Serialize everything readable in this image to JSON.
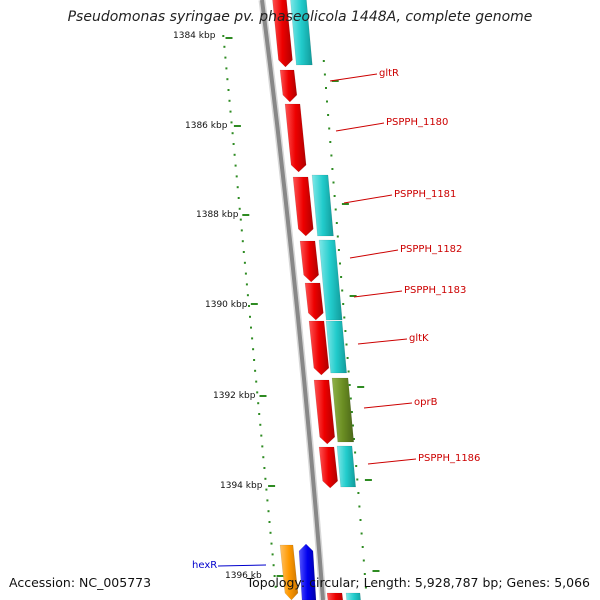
{
  "title": "Pseudomonas syringae pv. phaseolicola 1448A, complete genome",
  "footer": {
    "accession": "Accession: NC_005773",
    "summary": "Topology: circular; Length: 5,928,787 bp; Genes: 5,066"
  },
  "axis": {
    "unit": "kbp",
    "labels": [
      "1384 kbp",
      "1386 kbp",
      "1388 kbp",
      "1390 kbp",
      "1392 kbp",
      "1394 kbp",
      "1396 kb"
    ]
  },
  "genes": [
    "gltR",
    "PSPPH_1180",
    "PSPPH_1181",
    "PSPPH_1182",
    "PSPPH_1183",
    "gltK",
    "oprB",
    "PSPPH_1186",
    "hexR"
  ],
  "colors": {
    "cds": "#ee0000",
    "cyan_feature": "#22cccc",
    "olive_feature": "#6b8e23",
    "orange_feature": "#ff9900",
    "blue_feature": "#0000ee",
    "tick": "#2e8b22",
    "backbone": "#888888",
    "label_red": "#cc0000",
    "label_blue": "#0000cc"
  }
}
